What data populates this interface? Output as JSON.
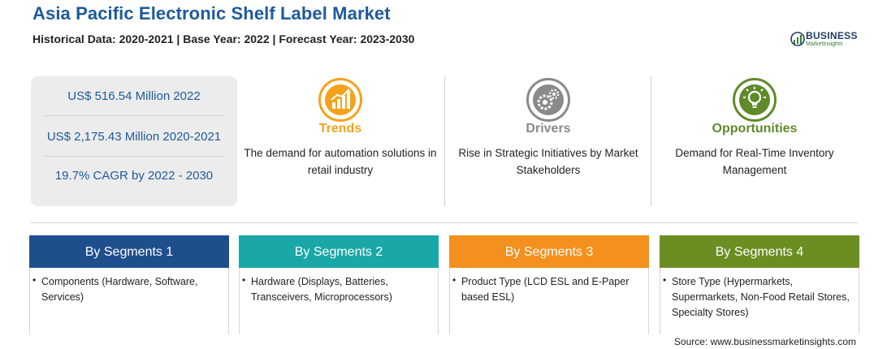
{
  "header": {
    "title": "Asia Pacific Electronic Shelf Label Market",
    "subtitle": "Historical Data: 2020-2021 | Base Year: 2022 | Forecast Year: 2023-2030"
  },
  "logo": {
    "name": "BUSINESS",
    "tagline": "MarketInsights"
  },
  "stats": [
    "US$ 516.54 Million 2022",
    "US$ 2,175.43 Million 2020-2021",
    "19.7% CAGR by 2022 - 2030"
  ],
  "columns": [
    {
      "title": "Trends",
      "text": "The demand for automation solutions in retail industry",
      "color": "#f5a21b",
      "icon": "trend-chart-icon"
    },
    {
      "title": "Drivers",
      "text": "Rise in Strategic Initiatives by Market Stakeholders",
      "color": "#8a8a8a",
      "icon": "gears-icon"
    },
    {
      "title": "Opportunities",
      "text": "Demand for Real-Time Inventory Management",
      "color": "#5f8a2a",
      "icon": "lightbulb-icon"
    }
  ],
  "segments": [
    {
      "title": "By Segments 1",
      "item": "Components (Hardware, Software, Services)",
      "color": "#1e4e8c"
    },
    {
      "title": "By Segments 2",
      "item": "Hardware (Displays, Batteries, Transceivers, Microprocessors)",
      "color": "#1aa7a7"
    },
    {
      "title": "By Segments 3",
      "item": "Product Type (LCD ESL and E-Paper based ESL)",
      "color": "#f4901e"
    },
    {
      "title": "By Segments 4",
      "item": "Store Type (Hypermarkets, Supermarkets, Non-Food Retail Stores, Specialty Stores)",
      "color": "#6b8e23"
    }
  ],
  "source": "Source: www.businessmarketinsights.com"
}
